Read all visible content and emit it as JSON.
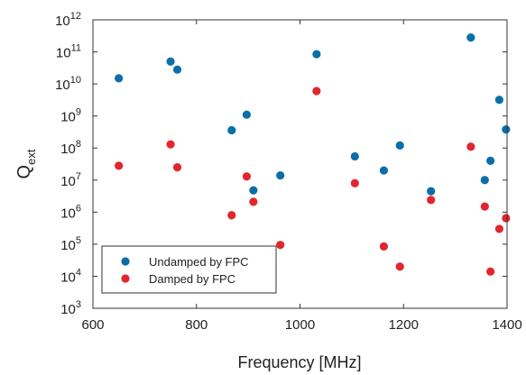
{
  "chart_data": {
    "type": "scatter",
    "title": "",
    "xlabel": "Frequency [MHz]",
    "ylabel_main": "Q",
    "ylabel_sub": "ext",
    "xlim": [
      600,
      1400
    ],
    "ylim": [
      1000,
      1000000000000
    ],
    "y_scale": "log",
    "x_ticks": [
      600,
      800,
      1000,
      1200,
      1400
    ],
    "y_ticks_exponents": [
      3,
      4,
      5,
      6,
      7,
      8,
      9,
      10,
      11,
      12
    ],
    "y_tick_base": "10",
    "grid": false,
    "legend_position": "bottom-left",
    "series": [
      {
        "name": "Undamped by FPC",
        "color": "#0a6fa8",
        "points": [
          {
            "x": 650,
            "y": 15000000000
          },
          {
            "x": 750,
            "y": 50000000000
          },
          {
            "x": 763,
            "y": 28000000000
          },
          {
            "x": 868,
            "y": 360000000
          },
          {
            "x": 897,
            "y": 1100000000
          },
          {
            "x": 910,
            "y": 4800000
          },
          {
            "x": 962,
            "y": 14000000
          },
          {
            "x": 1032,
            "y": 85000000000
          },
          {
            "x": 1106,
            "y": 55000000
          },
          {
            "x": 1162,
            "y": 20000000
          },
          {
            "x": 1193,
            "y": 120000000
          },
          {
            "x": 1253,
            "y": 4500000
          },
          {
            "x": 1330,
            "y": 280000000000
          },
          {
            "x": 1357,
            "y": 10000000
          },
          {
            "x": 1368,
            "y": 40000000
          },
          {
            "x": 1385,
            "y": 3200000000
          },
          {
            "x": 1398,
            "y": 380000000
          }
        ]
      },
      {
        "name": "Damped by FPC",
        "color": "#e2262e",
        "points": [
          {
            "x": 650,
            "y": 28000000
          },
          {
            "x": 750,
            "y": 130000000
          },
          {
            "x": 763,
            "y": 25000000
          },
          {
            "x": 868,
            "y": 800000
          },
          {
            "x": 897,
            "y": 13000000
          },
          {
            "x": 910,
            "y": 2100000
          },
          {
            "x": 962,
            "y": 95000
          },
          {
            "x": 1032,
            "y": 6000000000
          },
          {
            "x": 1106,
            "y": 8000000
          },
          {
            "x": 1162,
            "y": 85000
          },
          {
            "x": 1193,
            "y": 20000
          },
          {
            "x": 1253,
            "y": 2400000
          },
          {
            "x": 1330,
            "y": 110000000
          },
          {
            "x": 1357,
            "y": 1500000
          },
          {
            "x": 1368,
            "y": 14000
          },
          {
            "x": 1385,
            "y": 300000
          },
          {
            "x": 1398,
            "y": 650000
          }
        ]
      }
    ]
  }
}
